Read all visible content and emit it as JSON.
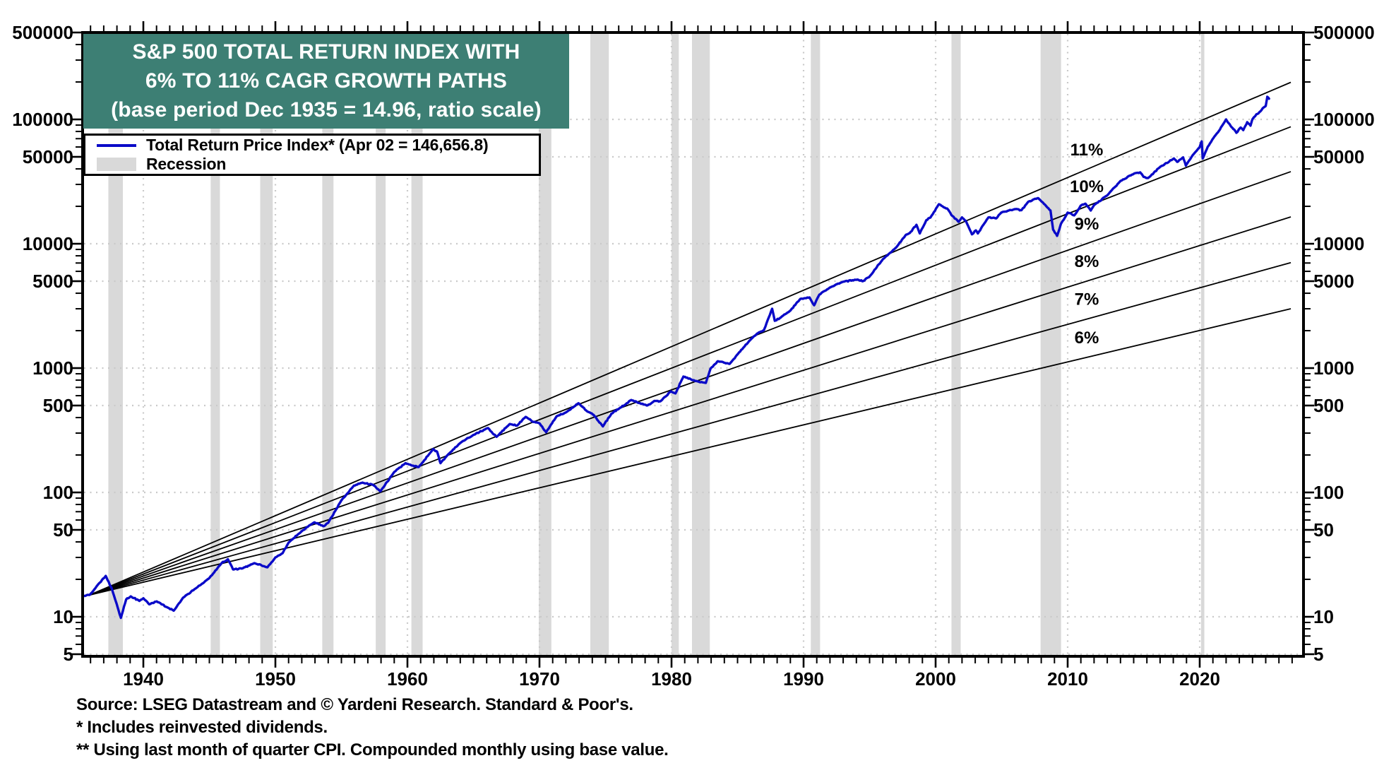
{
  "title": {
    "line1": "S&P 500 TOTAL RETURN INDEX WITH",
    "line2": "6% TO 11% CAGR GROWTH PATHS",
    "line3": "(base period Dec 1935 = 14.96, ratio scale)"
  },
  "legend": {
    "series_label": "Total Return Price Index* (Apr 02 = 146,656.8)",
    "recession_label": "Recession"
  },
  "footer": {
    "source": "Source: LSEG Datastream and © Yardeni Research. Standard & Poor's.",
    "note1": "* Includes reinvested dividends.",
    "note2": "** Using last month of quarter CPI. Compounded monthly using base value."
  },
  "colors": {
    "title_bg": "#3d7f74",
    "title_text": "#ffffff",
    "series": "#0a0ac8",
    "cagr_line": "#000000",
    "recession": "#d9d9d9",
    "grid": "#c9c9c9",
    "axis": "#000000"
  },
  "chart_data": {
    "type": "line",
    "title": "S&P 500 TOTAL RETURN INDEX WITH 6% TO 11% CAGR GROWTH PATHS (base period Dec 1935 = 14.96, ratio scale)",
    "ratio_scale": true,
    "x_range": [
      1935.4,
      2027.9
    ],
    "y_range": [
      5,
      500000
    ],
    "y_ticks": [
      500000,
      100000,
      50000,
      10000,
      5000,
      1000,
      500,
      100,
      50,
      10,
      5
    ],
    "x_tick_decades": [
      1940,
      1950,
      1960,
      1970,
      1980,
      1990,
      2000,
      2010,
      2020
    ],
    "grid": "dotted",
    "legend_position": "top-left",
    "base_period": {
      "label": "Dec 1935",
      "value": 14.96
    },
    "cagr_paths": {
      "start_year": 1935.92,
      "start_value": 14.96,
      "end_year": 2026.9,
      "rates_pct": [
        6,
        7,
        8,
        9,
        10,
        11
      ],
      "labels": [
        "6%",
        "7%",
        "8%",
        "9%",
        "10%",
        "11%"
      ],
      "label_year": 2011.44
    },
    "recessions": [
      [
        1937.35,
        1938.45
      ],
      [
        1945.1,
        1945.8
      ],
      [
        1948.85,
        1949.8
      ],
      [
        1953.55,
        1954.4
      ],
      [
        1957.6,
        1958.35
      ],
      [
        1960.3,
        1961.15
      ],
      [
        1969.95,
        1970.9
      ],
      [
        1973.85,
        1975.25
      ],
      [
        1980.0,
        1980.55
      ],
      [
        1981.55,
        1982.9
      ],
      [
        1990.55,
        1991.25
      ],
      [
        2001.2,
        2001.9
      ],
      [
        2007.95,
        2009.5
      ],
      [
        2020.1,
        2020.35
      ]
    ],
    "series": {
      "name": "Total Return Price Index",
      "last_point_label": "Apr 02 = 146,656.8",
      "last_value": 146656.8,
      "points": [
        [
          1935.45,
          14.7
        ],
        [
          1935.92,
          14.96
        ],
        [
          1936.45,
          17.5
        ],
        [
          1937.15,
          21.3
        ],
        [
          1937.6,
          17.0
        ],
        [
          1938.0,
          12.5
        ],
        [
          1938.3,
          9.8
        ],
        [
          1938.7,
          13.8
        ],
        [
          1939.05,
          14.6
        ],
        [
          1939.7,
          13.4
        ],
        [
          1940.0,
          14.1
        ],
        [
          1940.45,
          12.6
        ],
        [
          1941.0,
          13.3
        ],
        [
          1941.95,
          11.7
        ],
        [
          1942.3,
          11.2
        ],
        [
          1943.0,
          14.2
        ],
        [
          1944.0,
          17.0
        ],
        [
          1945.0,
          20.5
        ],
        [
          1945.95,
          27.2
        ],
        [
          1946.4,
          29.0
        ],
        [
          1946.8,
          24.0
        ],
        [
          1947.5,
          24.5
        ],
        [
          1948.4,
          27.0
        ],
        [
          1949.4,
          25.0
        ],
        [
          1950.0,
          30.0
        ],
        [
          1950.55,
          32.5
        ],
        [
          1951.0,
          39.5
        ],
        [
          1952.0,
          48.8
        ],
        [
          1952.95,
          57.5
        ],
        [
          1953.65,
          53.5
        ],
        [
          1954.0,
          57.0
        ],
        [
          1955.0,
          86.5
        ],
        [
          1955.95,
          113.5
        ],
        [
          1956.6,
          120.0
        ],
        [
          1957.4,
          115.0
        ],
        [
          1957.95,
          102.0
        ],
        [
          1959.0,
          146.0
        ],
        [
          1959.85,
          172.0
        ],
        [
          1960.3,
          165.0
        ],
        [
          1960.85,
          160.0
        ],
        [
          1961.95,
          223.0
        ],
        [
          1962.25,
          212.0
        ],
        [
          1962.5,
          172.0
        ],
        [
          1963.0,
          198.0
        ],
        [
          1964.0,
          250.0
        ],
        [
          1965.0,
          290.0
        ],
        [
          1966.1,
          330.0
        ],
        [
          1966.75,
          280.0
        ],
        [
          1967.75,
          355.0
        ],
        [
          1968.3,
          345.0
        ],
        [
          1968.95,
          405.0
        ],
        [
          1969.5,
          370.0
        ],
        [
          1970.0,
          360.0
        ],
        [
          1970.5,
          305.0
        ],
        [
          1971.3,
          410.0
        ],
        [
          1972.0,
          440.0
        ],
        [
          1972.95,
          522.0
        ],
        [
          1973.6,
          450.0
        ],
        [
          1974.1,
          420.0
        ],
        [
          1974.8,
          340.0
        ],
        [
          1975.45,
          430.0
        ],
        [
          1976.0,
          470.0
        ],
        [
          1976.95,
          554.0
        ],
        [
          1977.9,
          510.0
        ],
        [
          1978.15,
          500.0
        ],
        [
          1978.7,
          545.0
        ],
        [
          1979.15,
          540.0
        ],
        [
          1979.95,
          650.0
        ],
        [
          1980.3,
          625.0
        ],
        [
          1980.9,
          855.0
        ],
        [
          1981.6,
          800.0
        ],
        [
          1982.6,
          760.0
        ],
        [
          1982.95,
          990.0
        ],
        [
          1983.5,
          1135.0
        ],
        [
          1984.4,
          1080.0
        ],
        [
          1985.0,
          1290.0
        ],
        [
          1986.0,
          1700.0
        ],
        [
          1986.5,
          1900.0
        ],
        [
          1987.0,
          2020.0
        ],
        [
          1987.62,
          3000.0
        ],
        [
          1987.82,
          2400.0
        ],
        [
          1988.2,
          2520.0
        ],
        [
          1989.0,
          2900.0
        ],
        [
          1989.75,
          3600.0
        ],
        [
          1990.45,
          3700.0
        ],
        [
          1990.8,
          3200.0
        ],
        [
          1991.2,
          3900.0
        ],
        [
          1992.0,
          4450.0
        ],
        [
          1993.0,
          4950.0
        ],
        [
          1994.1,
          5150.0
        ],
        [
          1994.5,
          5000.0
        ],
        [
          1995.0,
          5450.0
        ],
        [
          1996.0,
          7500.0
        ],
        [
          1997.0,
          9300.0
        ],
        [
          1997.75,
          11800.0
        ],
        [
          1998.05,
          12200.0
        ],
        [
          1998.55,
          14200.0
        ],
        [
          1998.8,
          12100.0
        ],
        [
          1999.3,
          15500.0
        ],
        [
          1999.6,
          16200.0
        ],
        [
          2000.25,
          20800.0
        ],
        [
          2000.7,
          19500.0
        ],
        [
          2000.95,
          18800.0
        ],
        [
          2001.2,
          17000.0
        ],
        [
          2001.75,
          15000.0
        ],
        [
          2002.0,
          16300.0
        ],
        [
          2002.3,
          15200.0
        ],
        [
          2002.75,
          11900.0
        ],
        [
          2003.05,
          12800.0
        ],
        [
          2003.2,
          12100.0
        ],
        [
          2004.0,
          16300.0
        ],
        [
          2004.6,
          16000.0
        ],
        [
          2005.0,
          17900.0
        ],
        [
          2006.0,
          19000.0
        ],
        [
          2006.5,
          18600.0
        ],
        [
          2007.0,
          21700.0
        ],
        [
          2007.75,
          23300.0
        ],
        [
          2008.0,
          22000.0
        ],
        [
          2008.7,
          18500.0
        ],
        [
          2008.9,
          13000.0
        ],
        [
          2009.2,
          11560.0
        ],
        [
          2009.5,
          14500.0
        ],
        [
          2010.0,
          17800.0
        ],
        [
          2010.5,
          16900.0
        ],
        [
          2011.0,
          20300.0
        ],
        [
          2011.35,
          21000.0
        ],
        [
          2011.75,
          18500.0
        ],
        [
          2012.0,
          20500.0
        ],
        [
          2013.0,
          24500.0
        ],
        [
          2014.0,
          32000.0
        ],
        [
          2015.0,
          36500.0
        ],
        [
          2015.5,
          37500.0
        ],
        [
          2015.75,
          34500.0
        ],
        [
          2016.1,
          33800.0
        ],
        [
          2017.0,
          41500.0
        ],
        [
          2018.05,
          48500.0
        ],
        [
          2018.3,
          45500.0
        ],
        [
          2018.75,
          49500.0
        ],
        [
          2018.95,
          42500.0
        ],
        [
          2019.5,
          52000.0
        ],
        [
          2020.0,
          60000.0
        ],
        [
          2020.15,
          66500.0
        ],
        [
          2020.23,
          48500.0
        ],
        [
          2020.6,
          60000.0
        ],
        [
          2021.0,
          70000.0
        ],
        [
          2021.5,
          82000.0
        ],
        [
          2022.0,
          100000.0
        ],
        [
          2022.25,
          92000.0
        ],
        [
          2022.5,
          85000.0
        ],
        [
          2022.78,
          78000.0
        ],
        [
          2023.1,
          86000.0
        ],
        [
          2023.3,
          82000.0
        ],
        [
          2023.6,
          95000.0
        ],
        [
          2023.85,
          89000.0
        ],
        [
          2024.0,
          100500.0
        ],
        [
          2024.3,
          110000.0
        ],
        [
          2024.55,
          115000.0
        ],
        [
          2024.75,
          122000.0
        ],
        [
          2025.0,
          128000.0
        ],
        [
          2025.12,
          152000.0
        ],
        [
          2025.25,
          146656.8
        ]
      ]
    }
  }
}
